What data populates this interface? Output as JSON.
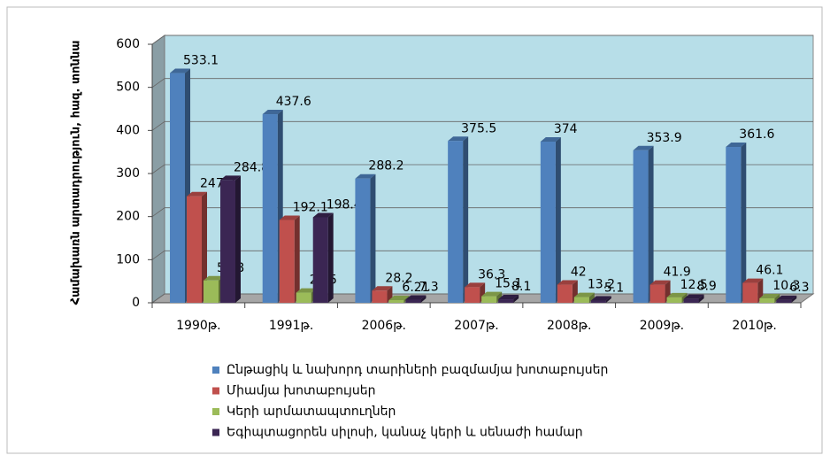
{
  "chart_data": {
    "type": "bar3d",
    "y_label": "Համախառն արտադրություն, հազ. տոննա",
    "categories": [
      "1990թ.",
      "1991թ.",
      "2006թ.",
      "2007թ.",
      "2008թ.",
      "2009թ.",
      "2010թ."
    ],
    "series": [
      {
        "name": "Ընթացիկ և նախորդ տարիների բազմամյա խոտաբույսեր",
        "color": "#4f81bd",
        "values": [
          533.1,
          437.6,
          288.2,
          375.5,
          374,
          353.9,
          361.6
        ]
      },
      {
        "name": "Միամյա խոտաբույսեր",
        "color": "#c0504d",
        "values": [
          247.2,
          192.1,
          28.2,
          36.3,
          42,
          41.9,
          46.1
        ]
      },
      {
        "name": "Կերի արմատապտուղներ",
        "color": "#9bbb59",
        "values": [
          51.8,
          23.5,
          6.21,
          15.1,
          13.2,
          12.5,
          10.3
        ]
      },
      {
        "name": "Եգիպտացորեն սիլոսի, կանաչ կերի և սենաժի համար",
        "color": "#3b2653",
        "values": [
          284.8,
          198.4,
          7.3,
          8.1,
          5.1,
          8.9,
          6.3
        ]
      }
    ],
    "ylim": [
      0,
      600
    ],
    "yticks": [
      0,
      100,
      200,
      300,
      400,
      500,
      600
    ],
    "grid": true,
    "legend": "bottom"
  }
}
